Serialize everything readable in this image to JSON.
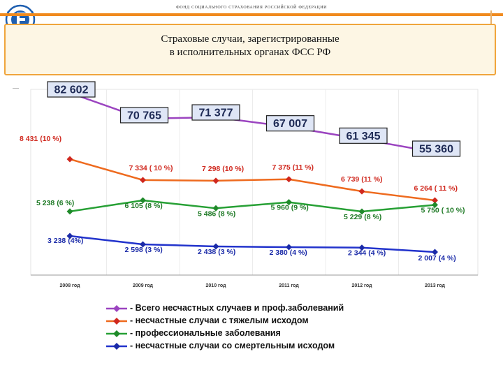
{
  "header": {
    "org_name": "фонд социального страхования российской федерации",
    "title_line1": "Страховые случаи, зарегистрированные",
    "title_line2": "в исполнительных органах ФСС РФ"
  },
  "chart_data": {
    "type": "line",
    "categories": [
      "2008 год",
      "2009 год",
      "2010 год",
      "2011 год",
      "2012 год",
      "2013 год"
    ],
    "series": [
      {
        "name": "- Всего несчастных случаев и проф.заболеваний",
        "color": "#9b44c0",
        "values": [
          82602,
          70765,
          71377,
          67007,
          61345,
          55360
        ],
        "labels": [
          "82 602",
          "70 765",
          "71 377",
          "67 007",
          "61 345",
          "55 360"
        ]
      },
      {
        "name": "- несчастные случаи с тяжелым исходом",
        "color": "#ee6a1e",
        "values": [
          8431,
          7334,
          7298,
          7375,
          6739,
          6264
        ],
        "labels": [
          "8 431 (10 %)",
          "7 334 ( 10 %)",
          "7 298 (10 %)",
          "7 375 (11 %)",
          "6 739 (11 %)",
          "6 264 ( 11 %)"
        ]
      },
      {
        "name": "- профессиональные заболевания",
        "color": "#27a035",
        "values": [
          5238,
          6105,
          5486,
          5960,
          5229,
          5750
        ],
        "labels": [
          "5 238 (6 %)",
          "6 105 (8 %)",
          "5 486 (8 %)",
          "5 960  (9 %)",
          "5 229 (8 %)",
          "5 750  ( 10 %)"
        ]
      },
      {
        "name": "- несчастные случаи со смертельным исходом",
        "color": "#2233cc",
        "values": [
          3238,
          2598,
          2438,
          2380,
          2344,
          2007
        ],
        "labels": [
          "3 238  (4%)",
          "2 598 (3 %)",
          "2 438 (3 %)",
          "2 380 (4 %)",
          "2 344 (4 %)",
          "2 007 (4 %)"
        ]
      }
    ],
    "grid": true,
    "legend_position": "bottom"
  },
  "colors": {
    "accent_orange": "#f08a1e",
    "title_fill": "#fdf6e4",
    "box_fill": "#dfe6f6",
    "box_border": "#222222"
  }
}
